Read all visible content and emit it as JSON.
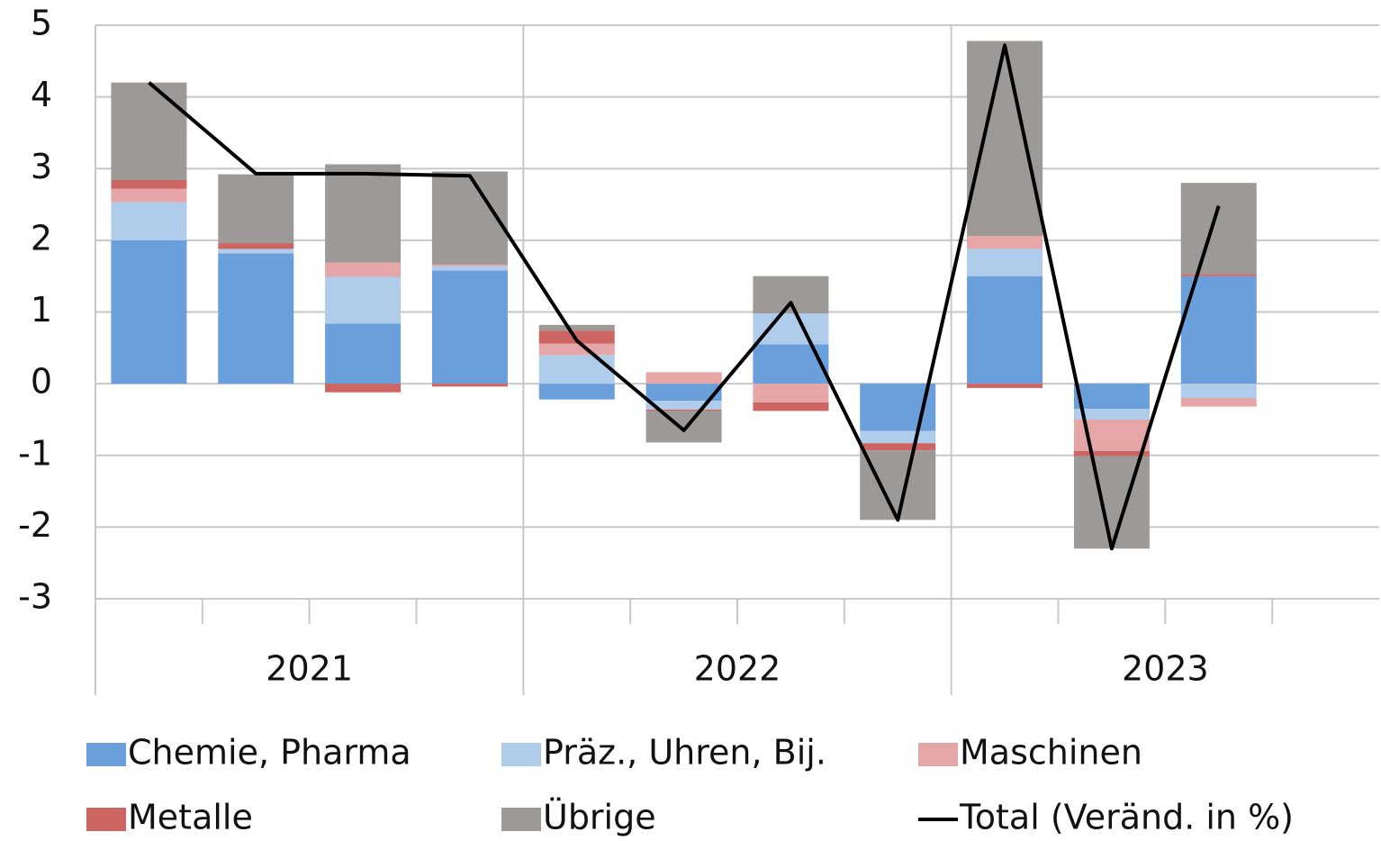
{
  "chart_data": {
    "type": "bar",
    "stacked": true,
    "categories": [
      null,
      null,
      null,
      null,
      null,
      null,
      null,
      null,
      null,
      null,
      null,
      null
    ],
    "groups": [
      "2021",
      "2022",
      "2023"
    ],
    "ylim": [
      -3,
      5
    ],
    "yticks": [
      -3,
      -2,
      -1,
      0,
      1,
      2,
      3,
      4,
      5
    ],
    "grid": true,
    "series": [
      {
        "name": "Chemie, Pharma",
        "color": "#6a9fdb",
        "values": [
          2.0,
          1.82,
          0.84,
          1.58,
          -0.22,
          -0.24,
          0.55,
          -0.66,
          1.5,
          -0.35,
          1.5,
          null
        ]
      },
      {
        "name": "Präz., Uhren, Bij.",
        "color": "#afcdea",
        "values": [
          0.53,
          0.06,
          0.65,
          0.06,
          0.4,
          -0.12,
          0.43,
          -0.17,
          0.38,
          -0.15,
          -0.2,
          null
        ]
      },
      {
        "name": "Maschinen",
        "color": "#e4a6a6",
        "values": [
          0.19,
          0,
          0.2,
          0.02,
          0.16,
          0.16,
          -0.26,
          0,
          0.18,
          -0.44,
          -0.12,
          null
        ]
      },
      {
        "name": "Metalle",
        "color": "#cd6563",
        "values": [
          0.12,
          0.08,
          -0.12,
          -0.04,
          0.18,
          -0.02,
          -0.12,
          -0.1,
          -0.06,
          -0.07,
          0.03,
          null
        ]
      },
      {
        "name": "Übrige",
        "color": "#9d9997",
        "values": [
          1.36,
          0.96,
          1.37,
          1.3,
          0.08,
          -0.44,
          0.52,
          -0.97,
          2.72,
          -1.29,
          1.27,
          null
        ]
      },
      {
        "name": "Total (Veränd. in %)",
        "type": "line",
        "color": "#000000",
        "values": [
          4.2,
          2.93,
          2.93,
          2.9,
          0.6,
          -0.65,
          1.13,
          -1.9,
          4.72,
          -2.3,
          2.48,
          null
        ]
      }
    ]
  }
}
